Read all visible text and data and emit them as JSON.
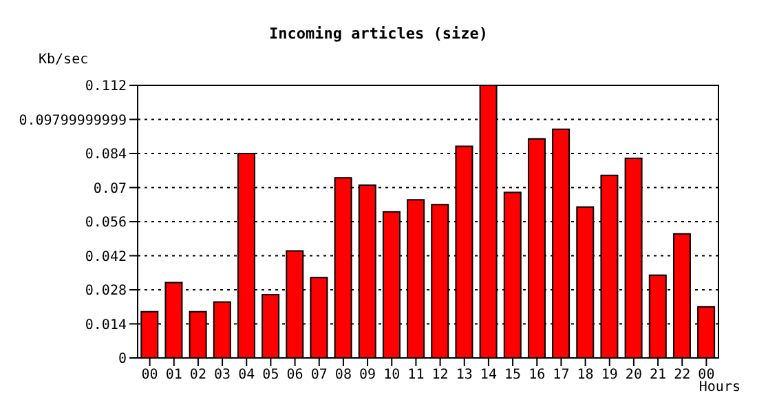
{
  "chart_data": {
    "type": "bar",
    "title": "Incoming articles (size)",
    "xlabel": "Hours",
    "ylabel": "Kb/sec",
    "categories": [
      "00",
      "01",
      "02",
      "03",
      "04",
      "05",
      "06",
      "07",
      "08",
      "09",
      "10",
      "11",
      "12",
      "13",
      "14",
      "15",
      "16",
      "17",
      "18",
      "19",
      "20",
      "21",
      "22",
      "00"
    ],
    "values": [
      0.019,
      0.031,
      0.019,
      0.023,
      0.084,
      0.026,
      0.044,
      0.033,
      0.074,
      0.071,
      0.06,
      0.065,
      0.063,
      0.087,
      0.112,
      0.068,
      0.09,
      0.094,
      0.062,
      0.075,
      0.082,
      0.034,
      0.051,
      0.021
    ],
    "color": "#ff0000",
    "ylim": [
      0,
      0.112
    ],
    "yticks": [
      0,
      0.014,
      0.028,
      0.042,
      0.056,
      0.07,
      0.084,
      0.09799999999,
      0.112
    ],
    "grid": "y"
  }
}
